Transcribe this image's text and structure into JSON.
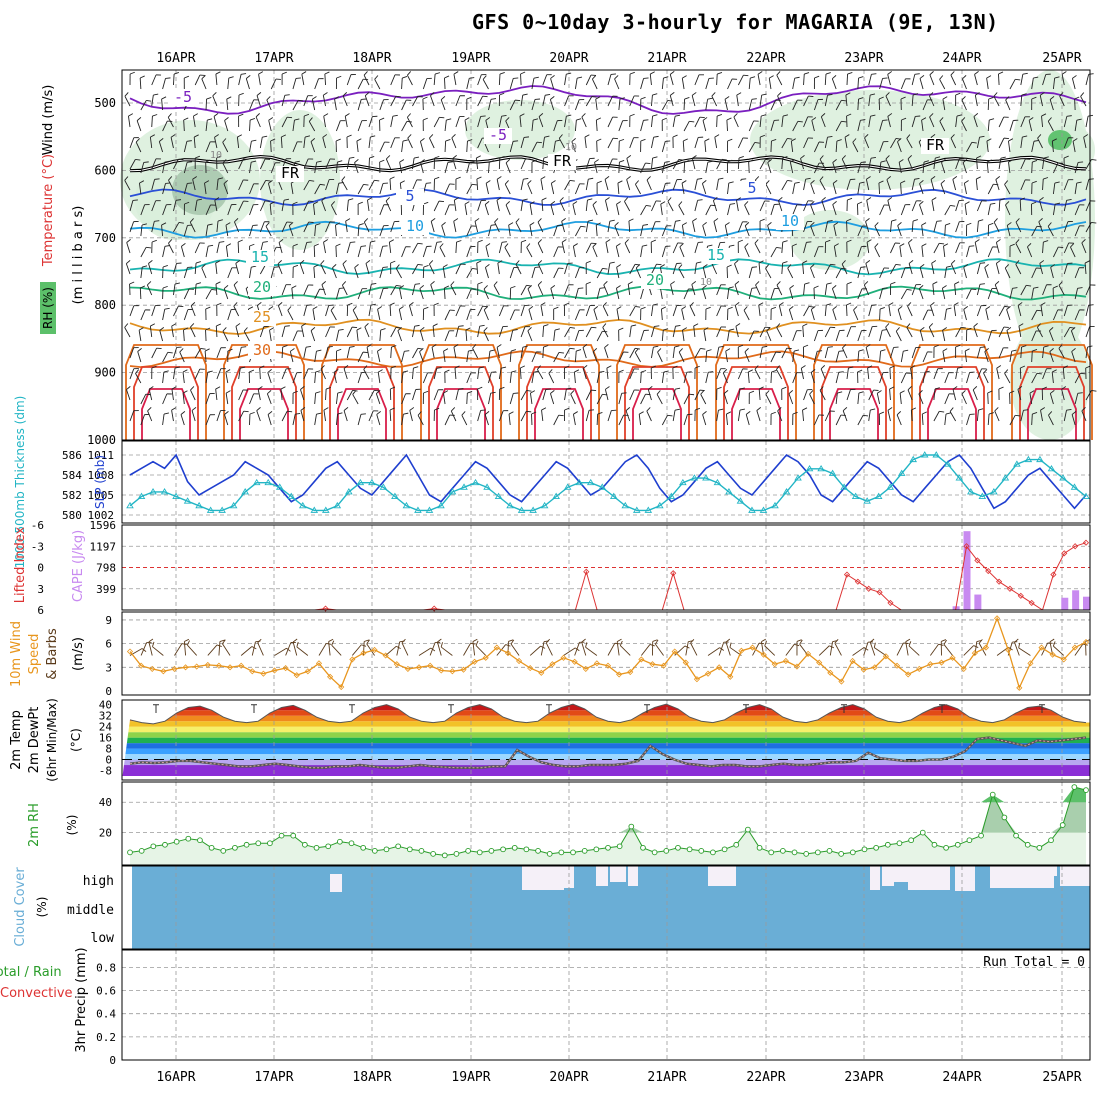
{
  "title": "GFS 0~10day 3-hourly for MAGARIA (9E, 13N)",
  "colors": {
    "grid": "#9a9a9a",
    "freezing": "#000000",
    "slp": "#1f3fcf",
    "thickness": "#22b5c5",
    "lifted": "#dd3333",
    "cape": "#c88af0",
    "wind10": "#e8961e",
    "rh2m": "#2a9d2a",
    "cloud": "#6aaed6",
    "cloud_clear": "#f5f0f8"
  },
  "chart_data": [
    {
      "type": "contour",
      "panel": "upper_air",
      "ylabel_parts": [
        "Wind (m/s)",
        "Temperature (°C)",
        "RH (%)",
        "(m i l l i b a r s)"
      ],
      "x_dates": [
        "16APR",
        "17APR",
        "18APR",
        "19APR",
        "20APR",
        "21APR",
        "22APR",
        "23APR",
        "24APR",
        "25APR"
      ],
      "y_ticks": [
        500,
        600,
        700,
        800,
        900,
        1000
      ],
      "ylim": [
        1000,
        450
      ],
      "freezing_label": "FR",
      "temperature_contours": [
        {
          "value": -5,
          "label": "-5",
          "color": "#7a1fbf",
          "mean_mb": 493
        },
        {
          "value": 0,
          "label": "FR",
          "color": "#000000",
          "mean_mb": 590
        },
        {
          "value": 5,
          "label": "5",
          "color": "#2a4fd6",
          "mean_mb": 640
        },
        {
          "value": 10,
          "label": "10",
          "color": "#1e9ee0",
          "mean_mb": 688
        },
        {
          "value": 15,
          "label": "15",
          "color": "#19b3b0",
          "mean_mb": 743
        },
        {
          "value": 20,
          "label": "20",
          "color": "#1faf7a",
          "mean_mb": 782
        },
        {
          "value": 25,
          "label": "25",
          "color": "#e09020",
          "mean_mb": 832
        },
        {
          "value": 30,
          "label": "30",
          "color": "#e06a1a",
          "mean_mb": 880
        }
      ],
      "rh_label": "10",
      "temperature_labels": [
        "-5",
        "5",
        "10",
        "15",
        "20",
        "25",
        "30",
        "-5",
        "5",
        "10",
        "15",
        "20"
      ]
    },
    {
      "type": "line",
      "panel": "slp_thickness",
      "ylabel_left": "1000-500mb Thickness (dm)",
      "ylabel_right": "SLP (mb)",
      "left_ticks": [
        580,
        582,
        584,
        586
      ],
      "right_ticks": [
        1002,
        1005,
        1008,
        1011
      ],
      "series": [
        {
          "name": "SLP (mb)",
          "values": [
            1008,
            1009,
            1010,
            1009,
            1011,
            1007,
            1005,
            1006,
            1007,
            1008,
            1010,
            1009,
            1008,
            1006,
            1004,
            1005,
            1007,
            1009,
            1010,
            1008,
            1006,
            1005,
            1007,
            1009,
            1011,
            1008,
            1005,
            1004,
            1006,
            1008,
            1010,
            1009,
            1007,
            1005,
            1004,
            1006,
            1008,
            1010,
            1009,
            1007,
            1005,
            1006,
            1008,
            1010,
            1011,
            1009,
            1006,
            1004,
            1005,
            1007,
            1009,
            1010,
            1008,
            1006,
            1005,
            1007,
            1009,
            1011,
            1010,
            1008,
            1005,
            1004,
            1006,
            1008,
            1010,
            1009,
            1007,
            1005,
            1004,
            1006,
            1008,
            1010,
            1011,
            1009,
            1006,
            1003,
            1004,
            1006,
            1008,
            1009,
            1007,
            1005,
            1003,
            1005
          ]
        },
        {
          "name": "1000-500mb Thickness (dm)",
          "values": [
            581,
            582,
            582.5,
            582.5,
            582,
            581.5,
            581,
            580.5,
            580.5,
            581,
            582.5,
            583.5,
            583.5,
            583,
            582,
            581,
            580.5,
            580.5,
            581,
            582.5,
            583.5,
            583.5,
            583,
            582,
            581,
            580.5,
            580.5,
            581,
            582.5,
            583,
            583.5,
            583,
            582,
            581,
            580.5,
            580.5,
            581,
            582,
            583,
            583.5,
            583.5,
            583,
            582,
            581,
            580.5,
            580.5,
            581,
            582,
            583.5,
            584,
            584,
            583.5,
            582.5,
            581.5,
            580.5,
            580.5,
            581,
            582.5,
            584,
            585,
            585,
            584.5,
            583,
            582,
            581.5,
            582,
            583,
            584.5,
            586,
            586.5,
            586.5,
            585.5,
            584,
            582.5,
            582,
            582.5,
            584,
            585.5,
            586,
            586,
            585,
            584,
            583,
            582
          ]
        }
      ]
    },
    {
      "type": "bar",
      "panel": "lifted_cape",
      "ylabel_left": "Lifted Index",
      "ylabel_right": "CAPE (J/kg)",
      "left_ticks": [
        "-6",
        "-3",
        "0",
        "3",
        "6"
      ],
      "right_ticks": [
        399,
        798,
        1197,
        1596
      ],
      "series": [
        {
          "name": "CAPE (J/kg)",
          "values": [
            0,
            0,
            0,
            0,
            0,
            0,
            0,
            0,
            0,
            0,
            0,
            0,
            0,
            0,
            0,
            0,
            0,
            0,
            0,
            0,
            0,
            0,
            0,
            0,
            0,
            0,
            0,
            0,
            0,
            0,
            0,
            0,
            0,
            0,
            0,
            0,
            0,
            0,
            0,
            0,
            0,
            0,
            0,
            0,
            0,
            0,
            0,
            0,
            0,
            0,
            0,
            0,
            0,
            0,
            0,
            0,
            0,
            0,
            0,
            0,
            0,
            0,
            0,
            0,
            0,
            0,
            0,
            0,
            0,
            0,
            0,
            0,
            0,
            0,
            0,
            0,
            70,
            1480,
            290,
            0,
            0,
            0,
            0,
            0,
            0,
            0,
            230,
            370,
            250
          ]
        },
        {
          "name": "Lifted Index",
          "values": [
            6,
            6,
            6,
            6,
            6,
            6,
            6,
            6,
            6,
            6,
            6,
            6,
            6,
            6,
            6,
            6,
            6,
            6,
            5.8,
            6,
            6,
            6,
            6,
            6,
            6,
            6,
            6,
            6,
            5.8,
            6,
            6,
            6,
            6,
            6,
            6,
            6,
            6,
            6,
            6,
            6,
            6,
            6,
            0.6,
            6,
            6,
            6,
            6,
            6,
            6,
            6,
            0.8,
            6,
            6,
            6,
            6,
            6,
            6,
            6,
            6,
            6,
            6,
            6,
            6,
            6,
            6,
            6,
            1,
            2,
            3,
            3.5,
            5,
            6,
            6,
            6,
            6,
            6,
            6,
            -3,
            -1,
            0.5,
            2,
            3,
            4,
            5,
            6,
            1,
            -2,
            -3,
            -3.5
          ]
        }
      ]
    },
    {
      "type": "line",
      "panel": "wind10",
      "ylabel": "10m Wind Speed & Barbs (m/s)",
      "y_ticks": [
        0,
        3,
        6,
        9
      ],
      "series": [
        {
          "name": "10m Wind Speed",
          "values": [
            5,
            3.2,
            2.8,
            2.5,
            2.8,
            3,
            3.1,
            3.3,
            3.2,
            3.0,
            3.2,
            2.5,
            2.2,
            2.6,
            2.9,
            2.0,
            2.5,
            3.5,
            1.8,
            0.5,
            4,
            4.8,
            5.2,
            4.5,
            3.4,
            2.8,
            3,
            3.2,
            2.6,
            2.5,
            2.7,
            3.7,
            4.2,
            5.5,
            4.8,
            3.8,
            2.9,
            2.3,
            3.4,
            4.2,
            3.7,
            2.8,
            3.5,
            3.2,
            2.1,
            2.4,
            4,
            3.4,
            3.2,
            5,
            3.6,
            1.5,
            2.2,
            3,
            1.8,
            5.1,
            5.5,
            4.6,
            3.4,
            3.8,
            3.1,
            4.7,
            3.6,
            2.3,
            1.2,
            3.8,
            2.7,
            3,
            4.4,
            3.2,
            2.1,
            2.8,
            3.4,
            3.6,
            4.2,
            2.8,
            4.8,
            5.5,
            9.2,
            5.2,
            0.4,
            3.5,
            5.5,
            4.6,
            4.0,
            5.5,
            6.2
          ]
        }
      ]
    },
    {
      "type": "area",
      "panel": "temp2m",
      "ylabel": "2m Temp 2m DewPt (6hr Min/Max) (°C)",
      "y_ticks": [
        "40",
        "32",
        "24",
        "16",
        "8",
        "0",
        "-8"
      ],
      "series": [
        {
          "name": "2m Temp",
          "values": [
            29,
            27,
            26,
            28,
            34,
            38,
            39,
            36,
            31,
            28,
            27,
            28,
            34,
            38,
            39.5,
            36,
            31,
            28,
            27,
            28,
            34,
            38,
            40,
            37,
            31,
            28,
            27,
            28,
            34,
            38,
            40,
            37,
            31,
            28,
            27,
            28,
            34,
            38,
            40.5,
            37,
            31,
            28,
            27,
            29,
            34,
            38,
            40.5,
            37,
            31,
            28,
            27,
            29,
            34,
            38,
            40,
            37,
            31,
            28,
            27,
            29,
            34,
            38,
            40,
            37,
            31,
            28,
            27,
            29,
            34,
            38,
            40,
            37,
            31,
            28,
            27,
            29,
            34,
            38,
            39,
            36,
            31,
            28,
            27
          ]
        },
        {
          "name": "2m DewPt",
          "values": [
            -3,
            -2,
            -2.5,
            -2,
            -1,
            -1,
            -2,
            -3,
            -4,
            -5,
            -5,
            -4,
            -3,
            -4,
            -5,
            -6,
            -6,
            -5,
            -5,
            -4,
            -5,
            -6,
            -6,
            -5,
            -4,
            -5,
            -5.5,
            -6,
            -6,
            -6,
            -5,
            -5,
            7,
            2,
            -2,
            -4,
            -5,
            -5,
            -4,
            -4,
            -4,
            -3,
            -1,
            10,
            4,
            0,
            -3,
            -4,
            -5,
            -4,
            -4,
            -5,
            -5,
            -4,
            -3,
            -4,
            -4,
            -3,
            -2,
            -2,
            -1,
            5,
            1,
            0,
            -1,
            -1,
            0,
            0,
            2,
            6,
            15,
            16,
            14,
            12,
            10,
            14,
            13,
            14,
            15,
            16
          ]
        }
      ]
    },
    {
      "type": "area",
      "panel": "rh2m",
      "ylabel": "2m RH (%)",
      "y_ticks": [
        20,
        40
      ],
      "series": [
        {
          "name": "2m RH",
          "values": [
            7,
            8,
            11,
            12,
            14,
            16,
            15,
            10,
            8,
            10,
            12,
            13,
            13,
            18,
            18,
            12,
            10,
            11,
            14,
            13,
            10,
            8,
            9,
            11,
            9,
            8,
            6,
            5,
            6,
            8,
            7,
            8,
            9,
            10,
            9,
            8,
            6,
            7,
            7,
            8,
            9,
            10,
            11,
            24,
            10,
            7,
            8,
            10,
            9,
            8,
            7,
            9,
            12,
            22,
            10,
            7,
            8,
            7,
            6,
            7,
            8,
            6,
            7,
            9,
            10,
            12,
            13,
            15,
            20,
            12,
            10,
            12,
            15,
            18,
            45,
            30,
            18,
            12,
            10,
            15,
            25,
            50,
            48
          ]
        }
      ]
    },
    {
      "type": "heatmap",
      "panel": "cloud",
      "ylabel": "Cloud Cover (%)",
      "rows": [
        "high",
        "middle",
        "low"
      ]
    },
    {
      "type": "bar",
      "panel": "precip",
      "ylabel": "3hr Precip (mm)",
      "legend_left": "Total / Rain",
      "legend_convective": "Convective",
      "y_ticks": [
        "0",
        "0.2",
        "0.4",
        "0.6",
        "0.8"
      ],
      "run_total": "Run Total = 0",
      "values": []
    }
  ]
}
